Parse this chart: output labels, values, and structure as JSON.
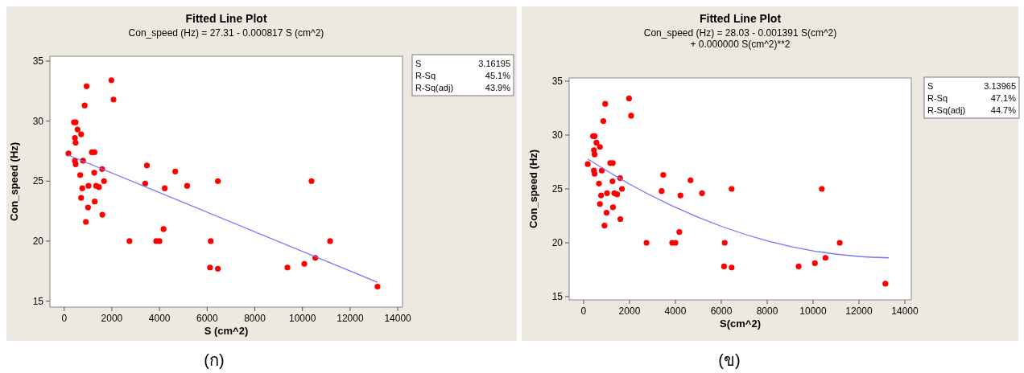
{
  "chart_data": [
    {
      "type": "scatter",
      "title": "Fitted Line Plot",
      "subtitle": "Con_speed (Hz) =  27.31 - 0.000817 S (cm^2)",
      "xlabel": "S (cm^2)",
      "ylabel": "Con_speed (Hz)",
      "xlim": [
        -600,
        14200
      ],
      "ylim": [
        14.5,
        35.4
      ],
      "xticks": [
        0,
        2000,
        4000,
        6000,
        8000,
        10000,
        12000,
        14000
      ],
      "yticks": [
        15,
        20,
        25,
        30,
        35
      ],
      "grid": false,
      "annotations": [
        "S 3.16195",
        "R-Sq 45.1%",
        "R-Sq(adj) 43.9%",
        "(ก)"
      ],
      "series": [
        {
          "marker": "circle",
          "color": "#ff0000",
          "x": [
            1980,
            940,
            2070,
            860,
            410,
            480,
            560,
            710,
            450,
            480,
            180,
            1160,
            1270,
            450,
            480,
            790,
            1590,
            3470,
            4660,
            670,
            1260,
            3400,
            1670,
            6450,
            760,
            1020,
            1340,
            1460,
            4220,
            5160,
            710,
            1280,
            1000,
            1600,
            910,
            4170,
            2740,
            3860,
            4000,
            6150,
            6120,
            6450,
            10380,
            11160,
            10540,
            10080,
            9370,
            13150
          ],
          "values": [
            33.4,
            32.9,
            31.8,
            31.3,
            29.9,
            29.9,
            29.3,
            28.9,
            28.6,
            28.2,
            27.3,
            27.4,
            27.4,
            26.7,
            26.4,
            26.7,
            26.0,
            26.3,
            25.8,
            25.5,
            25.7,
            24.8,
            25.0,
            25.0,
            24.4,
            24.6,
            24.6,
            24.5,
            24.4,
            24.6,
            23.6,
            23.3,
            22.8,
            22.2,
            21.6,
            21.0,
            20.0,
            20.0,
            20.0,
            20.0,
            17.8,
            17.7,
            25.0,
            20.0,
            18.6,
            18.1,
            17.8,
            16.2
          ]
        },
        {
          "type": "line",
          "color": "#7373ff",
          "line_style": "solid",
          "x": [
            180,
            13150
          ],
          "values": [
            27.16,
            16.57
          ]
        }
      ]
    },
    {
      "type": "scatter",
      "title": "Fitted Line Plot",
      "subtitle": "Con_speed (Hz) = 28.03 - 0.001391 S(cm^2)\n+ 0.000000 S(cm^2)**2",
      "xlabel": "S(cm^2)",
      "ylabel": "Con_speed (Hz)",
      "xlim": [
        -630,
        14280
      ],
      "ylim": [
        14.7,
        35.3
      ],
      "xticks": [
        0,
        2000,
        4000,
        6000,
        8000,
        10000,
        12000,
        14000
      ],
      "yticks": [
        15,
        20,
        25,
        30,
        35
      ],
      "grid": false,
      "annotations": [
        "S 3.13965",
        "R-Sq 47.1%",
        "R-Sq(adj) 44.7%",
        "(ข)"
      ],
      "series": [
        {
          "marker": "circle",
          "color": "#ff0000",
          "x": [
            1980,
            940,
            2070,
            860,
            410,
            480,
            560,
            710,
            450,
            480,
            180,
            1160,
            1270,
            450,
            480,
            790,
            1590,
            3470,
            4660,
            670,
            1260,
            3400,
            1670,
            6450,
            760,
            1020,
            1340,
            1460,
            4220,
            5160,
            710,
            1280,
            1000,
            1600,
            910,
            4170,
            2740,
            3860,
            4000,
            6150,
            6120,
            6450,
            10380,
            11160,
            10540,
            10080,
            9370,
            13150
          ],
          "values": [
            33.4,
            32.9,
            31.8,
            31.3,
            29.9,
            29.9,
            29.3,
            28.9,
            28.6,
            28.2,
            27.3,
            27.4,
            27.4,
            26.7,
            26.4,
            26.7,
            26.0,
            26.3,
            25.8,
            25.5,
            25.7,
            24.8,
            25.0,
            25.0,
            24.4,
            24.6,
            24.6,
            24.5,
            24.4,
            24.6,
            23.6,
            23.3,
            22.8,
            22.2,
            21.6,
            21.0,
            20.0,
            20.0,
            20.0,
            20.0,
            17.8,
            17.7,
            25.0,
            20.0,
            18.6,
            18.1,
            17.8,
            16.2
          ]
        },
        {
          "type": "line",
          "color": "#7373ff",
          "line_style": "solid",
          "x": [
            180,
            2000,
            4000,
            6000,
            8000,
            10000,
            12000,
            13300
          ],
          "values": [
            27.78,
            25.45,
            23.29,
            21.53,
            20.18,
            19.25,
            18.73,
            18.6
          ]
        }
      ]
    }
  ]
}
